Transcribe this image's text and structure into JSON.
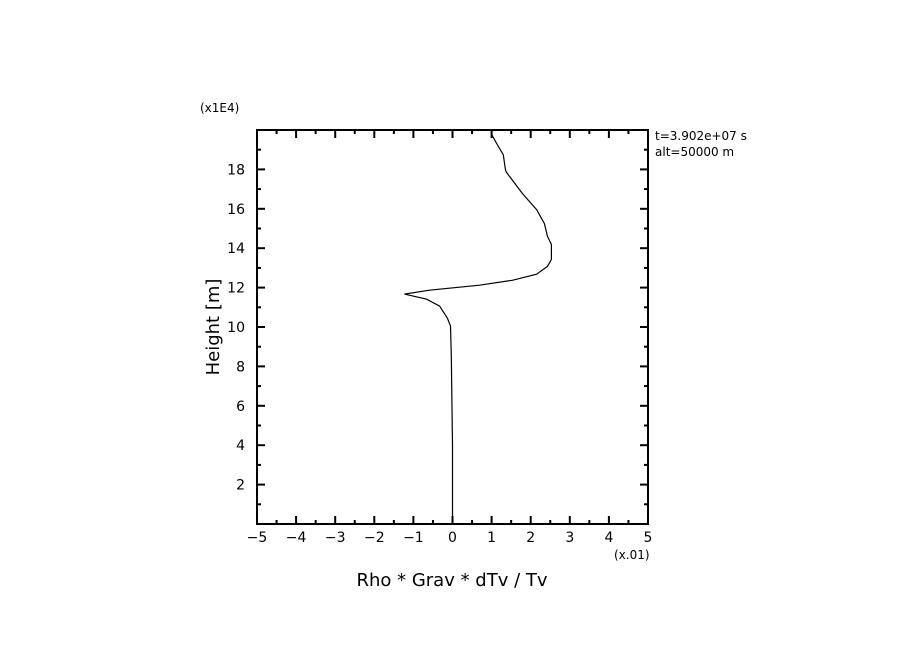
{
  "chart_data": {
    "type": "line",
    "title": "",
    "xlabel": "Rho * Grav * dTv / Tv",
    "ylabel": "Height [m]",
    "x_multiplier": "(x.01)",
    "y_multiplier": "(x1E4)",
    "xlim": [
      -5,
      5
    ],
    "ylim": [
      0,
      20
    ],
    "xticks": [
      -5,
      -4,
      -3,
      -2,
      -1,
      0,
      1,
      2,
      3,
      4,
      5
    ],
    "yticks": [
      2,
      4,
      6,
      8,
      10,
      12,
      14,
      16,
      18
    ],
    "grid": false,
    "annotations": [
      "t=3.902e+07 s",
      "alt=50000 m"
    ],
    "series": [
      {
        "color": "#000000",
        "x": [
          0.0,
          0.0,
          -0.03,
          -0.05,
          -0.13,
          -0.33,
          -0.66,
          -1.23,
          -0.59,
          0.69,
          1.53,
          2.15,
          2.43,
          2.53,
          2.53,
          2.43,
          2.35,
          2.15,
          1.79,
          1.37,
          1.35,
          1.3,
          1.15,
          0.99
        ],
        "y": [
          0.4,
          4.0,
          8.54,
          10.05,
          10.45,
          11.06,
          11.41,
          11.67,
          11.87,
          12.12,
          12.37,
          12.68,
          13.08,
          13.43,
          14.19,
          14.6,
          15.25,
          15.96,
          16.77,
          17.88,
          18.03,
          18.74,
          19.24,
          19.81
        ]
      }
    ]
  }
}
